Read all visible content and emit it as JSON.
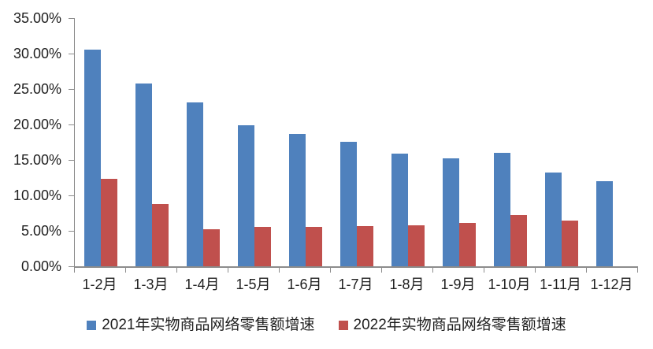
{
  "chart_data": {
    "type": "bar",
    "title": "",
    "categories": [
      "1-2月",
      "1-3月",
      "1-4月",
      "1-5月",
      "1-6月",
      "1-7月",
      "1-8月",
      "1-9月",
      "1-10月",
      "1-11月",
      "1-12月"
    ],
    "series": [
      {
        "name": "2021年实物商品网络零售额增速",
        "color": "#4F81BD",
        "values": [
          30.6,
          25.8,
          23.1,
          19.9,
          18.7,
          17.6,
          15.9,
          15.2,
          16.0,
          13.2,
          12.0
        ]
      },
      {
        "name": "2022年实物商品网络零售额增速",
        "color": "#C0504D",
        "values": [
          12.3,
          8.8,
          5.2,
          5.6,
          5.6,
          5.7,
          5.8,
          6.1,
          7.2,
          6.4,
          null
        ]
      }
    ],
    "ylabel": "",
    "xlabel": "",
    "ylim": [
      0,
      35
    ],
    "ytick_step": 5,
    "ytick_labels": [
      "0.00%",
      "5.00%",
      "10.00%",
      "15.00%",
      "20.00%",
      "25.00%",
      "30.00%",
      "35.00%"
    ],
    "grid": false,
    "legend_position": "bottom",
    "unit": "percent"
  },
  "colors": {
    "axis": "#8C8C8C",
    "text": "#1F1F1F",
    "background": "#FFFFFF",
    "series_2021": "#4F81BD",
    "series_2022": "#C0504D"
  }
}
